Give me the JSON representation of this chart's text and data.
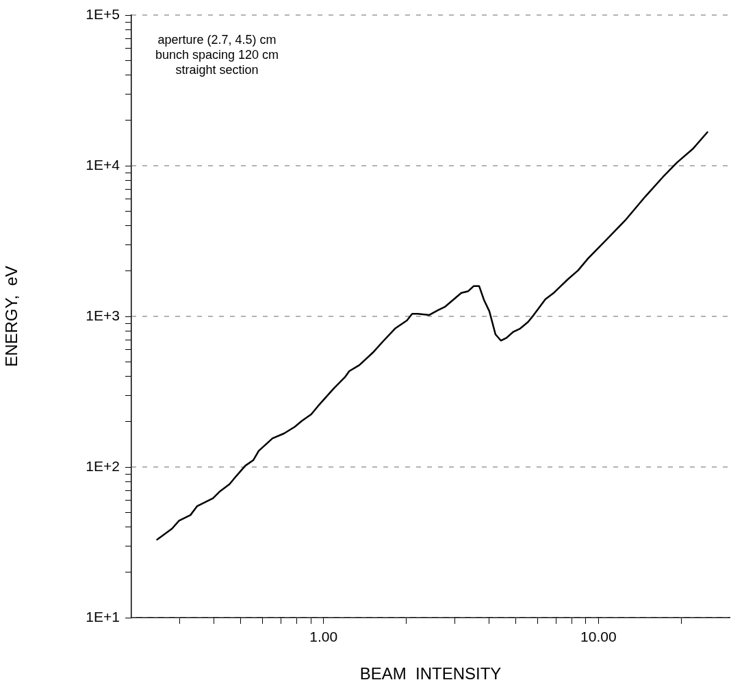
{
  "chart_data": {
    "type": "line",
    "xlabel": "BEAM  INTENSITY",
    "ylabel": "ENERGY,  eV",
    "annotations": [
      "aperture (2.7, 4.5) cm",
      "bunch spacing 120 cm",
      "straight section"
    ],
    "log": "xy",
    "grid": "y",
    "marker": "none",
    "line_style": "solid",
    "color": "#000000",
    "xlim": [
      0.2,
      30
    ],
    "ylim": [
      10,
      100000
    ],
    "xticks": [
      {
        "value": 0.3,
        "label": null
      },
      {
        "value": 0.4,
        "label": null
      },
      {
        "value": 0.5,
        "label": null
      },
      {
        "value": 0.6,
        "label": null
      },
      {
        "value": 0.7,
        "label": null
      },
      {
        "value": 0.8,
        "label": null
      },
      {
        "value": 0.9,
        "label": null
      },
      {
        "value": 1,
        "label": "1.00"
      },
      {
        "value": 2,
        "label": null
      },
      {
        "value": 3,
        "label": null
      },
      {
        "value": 4,
        "label": null
      },
      {
        "value": 5,
        "label": null
      },
      {
        "value": 6,
        "label": null
      },
      {
        "value": 7,
        "label": null
      },
      {
        "value": 8,
        "label": null
      },
      {
        "value": 9,
        "label": null
      },
      {
        "value": 10,
        "label": "10.00"
      },
      {
        "value": 20,
        "label": null
      }
    ],
    "yticks": [
      {
        "value": 10,
        "label": "1E+1"
      },
      {
        "value": 20,
        "label": null
      },
      {
        "value": 30,
        "label": null
      },
      {
        "value": 40,
        "label": null
      },
      {
        "value": 50,
        "label": null
      },
      {
        "value": 60,
        "label": null
      },
      {
        "value": 70,
        "label": null
      },
      {
        "value": 80,
        "label": null
      },
      {
        "value": 90,
        "label": null
      },
      {
        "value": 100,
        "label": "1E+2"
      },
      {
        "value": 200,
        "label": null
      },
      {
        "value": 300,
        "label": null
      },
      {
        "value": 400,
        "label": null
      },
      {
        "value": 500,
        "label": null
      },
      {
        "value": 600,
        "label": null
      },
      {
        "value": 700,
        "label": null
      },
      {
        "value": 800,
        "label": null
      },
      {
        "value": 900,
        "label": null
      },
      {
        "value": 1000,
        "label": "1E+3"
      },
      {
        "value": 2000,
        "label": null
      },
      {
        "value": 3000,
        "label": null
      },
      {
        "value": 4000,
        "label": null
      },
      {
        "value": 5000,
        "label": null
      },
      {
        "value": 6000,
        "label": null
      },
      {
        "value": 7000,
        "label": null
      },
      {
        "value": 8000,
        "label": null
      },
      {
        "value": 9000,
        "label": null
      },
      {
        "value": 10000,
        "label": "1E+4"
      },
      {
        "value": 20000,
        "label": null
      },
      {
        "value": 30000,
        "label": null
      },
      {
        "value": 40000,
        "label": null
      },
      {
        "value": 50000,
        "label": null
      },
      {
        "value": 60000,
        "label": null
      },
      {
        "value": 70000,
        "label": null
      },
      {
        "value": 80000,
        "label": null
      },
      {
        "value": 90000,
        "label": null
      },
      {
        "value": 100000,
        "label": "1E+5"
      }
    ],
    "x": [
      0.248,
      0.281,
      0.298,
      0.328,
      0.347,
      0.396,
      0.42,
      0.455,
      0.481,
      0.519,
      0.555,
      0.581,
      0.652,
      0.718,
      0.786,
      0.833,
      0.902,
      0.955,
      1.09,
      1.2,
      1.24,
      1.35,
      1.51,
      1.65,
      1.82,
      2.01,
      2.1,
      2.2,
      2.42,
      2.61,
      2.77,
      3.17,
      3.36,
      3.52,
      3.68,
      3.83,
      4.01,
      4.22,
      4.42,
      4.63,
      4.9,
      5.19,
      5.55,
      5.81,
      6.41,
      6.9,
      7.73,
      8.43,
      9.18,
      10.7,
      12.5,
      14.8,
      17.2,
      19.3,
      22.1,
      24.9
    ],
    "values": [
      33,
      39,
      44,
      48,
      55,
      62,
      69,
      77,
      87,
      102,
      111,
      128,
      155,
      167,
      185,
      202,
      224,
      254,
      333,
      398,
      433,
      475,
      574,
      686,
      830,
      940,
      1040,
      1040,
      1020,
      1100,
      1160,
      1430,
      1470,
      1590,
      1590,
      1290,
      1080,
      760,
      690,
      720,
      790,
      830,
      920,
      1020,
      1300,
      1440,
      1760,
      2020,
      2430,
      3230,
      4330,
      6240,
      8460,
      10500,
      13000,
      16700
    ]
  }
}
